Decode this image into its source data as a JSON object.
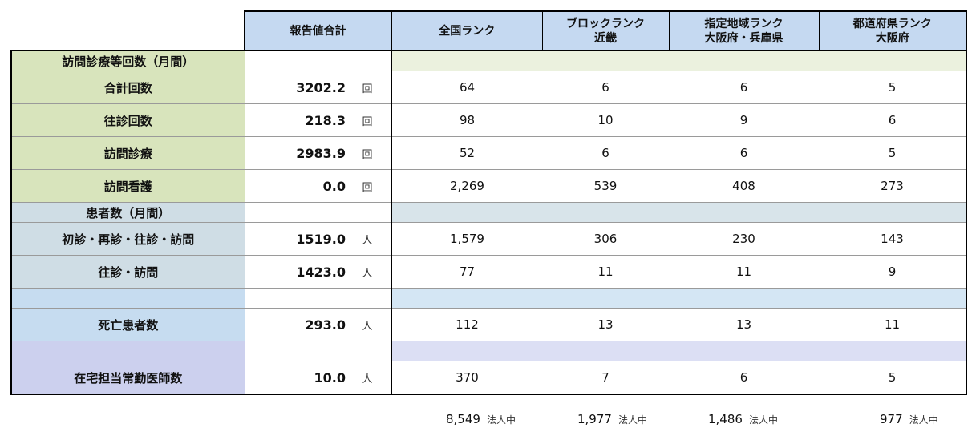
{
  "header": {
    "total": "報告値合計",
    "national": "全国ランク",
    "block": "ブロックランク",
    "block_sub": "近畿",
    "region": "指定地域ランク",
    "region_sub": "大阪府・兵庫県",
    "pref": "都道府県ランク",
    "pref_sub": "大阪府"
  },
  "sections": [
    {
      "title": "訪問診療等回数（月間）"
    },
    {
      "title": "患者数（月間）"
    },
    {
      "title": ""
    },
    {
      "title": ""
    }
  ],
  "rows": [
    {
      "label": "合計回数",
      "value": "3202.2",
      "unit": "回",
      "national": "64",
      "block": "6",
      "region": "6",
      "pref": "5"
    },
    {
      "label": "往診回数",
      "value": "218.3",
      "unit": "回",
      "national": "98",
      "block": "10",
      "region": "9",
      "pref": "6"
    },
    {
      "label": "訪問診療",
      "value": "2983.9",
      "unit": "回",
      "national": "52",
      "block": "6",
      "region": "6",
      "pref": "5"
    },
    {
      "label": "訪問看護",
      "value": "0.0",
      "unit": "回",
      "national": "2,269",
      "block": "539",
      "region": "408",
      "pref": "273"
    },
    {
      "label": "初診・再診・往診・訪問",
      "value": "1519.0",
      "unit": "人",
      "national": "1,579",
      "block": "306",
      "region": "230",
      "pref": "143"
    },
    {
      "label": "往診・訪問",
      "value": "1423.0",
      "unit": "人",
      "national": "77",
      "block": "11",
      "region": "11",
      "pref": "9"
    },
    {
      "label": "死亡患者数",
      "value": "293.0",
      "unit": "人",
      "national": "112",
      "block": "13",
      "region": "13",
      "pref": "11"
    },
    {
      "label": "在宅担当常勤医師数",
      "value": "10.0",
      "unit": "人",
      "national": "370",
      "block": "7",
      "region": "6",
      "pref": "5"
    }
  ],
  "footer": {
    "national": "8,549",
    "block": "1,977",
    "region": "1,486",
    "pref": "977",
    "suffix": "法人中"
  },
  "colors": {
    "header": "#c5d9f1",
    "group1": "#d8e4bc",
    "group2": "#cfdde5",
    "group3": "#c6dcf0",
    "group4": "#ccd0ee"
  }
}
